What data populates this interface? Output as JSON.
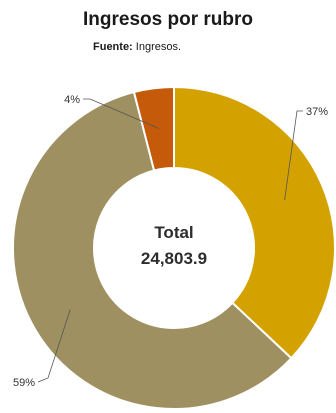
{
  "title": "Ingresos por rubro",
  "source_label": "Fuente:",
  "source_text": "Ingresos.",
  "center": {
    "label": "Total",
    "value": "24,803.9"
  },
  "chart_data": {
    "type": "pie",
    "style": "donut",
    "title": "Ingresos por rubro",
    "total": 24803.9,
    "slices": [
      {
        "label": "37%",
        "value": 37,
        "color": "#D4A200"
      },
      {
        "label": "59%",
        "value": 59,
        "color": "#9E9060"
      },
      {
        "label": "4%",
        "value": 4,
        "color": "#C45A0A"
      }
    ]
  }
}
